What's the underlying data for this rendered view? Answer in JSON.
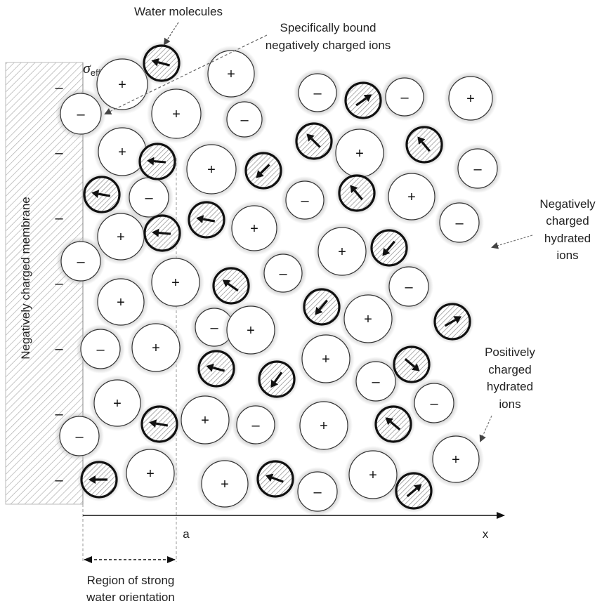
{
  "labels": {
    "water_molecules": "Water molecules",
    "bound_ions_line1": "Specifically bound",
    "bound_ions_line2": "negatively charged ions",
    "sigma_symbol": "σ",
    "sigma_subscript": "eff",
    "membrane": "Negatively charged membrane",
    "neg_hydrated_line1": "Negatively",
    "neg_hydrated_line2": "charged",
    "neg_hydrated_line3": "hydrated",
    "neg_hydrated_line4": "ions",
    "pos_hydrated_line1": "Positively",
    "pos_hydrated_line2": "charged",
    "pos_hydrated_line3": "hydrated",
    "pos_hydrated_line4": "ions",
    "axis_a": "a",
    "axis_x": "x",
    "region_line1": "Region of strong",
    "region_line2": "water orientation"
  },
  "symbols": {
    "plus": "+",
    "minus": "–",
    "membrane_charge": "–"
  },
  "colors": {
    "ink": "#111111",
    "hatch": "#9a9a9a",
    "leader": "#777777",
    "halo": "#bdbdbd"
  }
}
